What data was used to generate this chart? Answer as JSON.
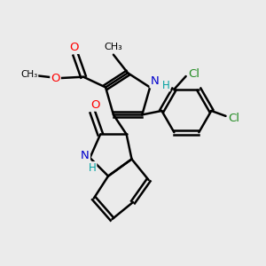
{
  "bg_color": "#ebebeb",
  "bond_color": "#000000",
  "bond_width": 1.8,
  "atom_colors": {
    "C": "#000000",
    "N": "#0000cc",
    "O": "#ff0000",
    "Cl": "#228B22",
    "H": "#008080",
    "NH": "#0000cc"
  },
  "figure_size": [
    3.0,
    3.0
  ],
  "dpi": 100,
  "xlim": [
    0,
    10
  ],
  "ylim": [
    0,
    10
  ]
}
